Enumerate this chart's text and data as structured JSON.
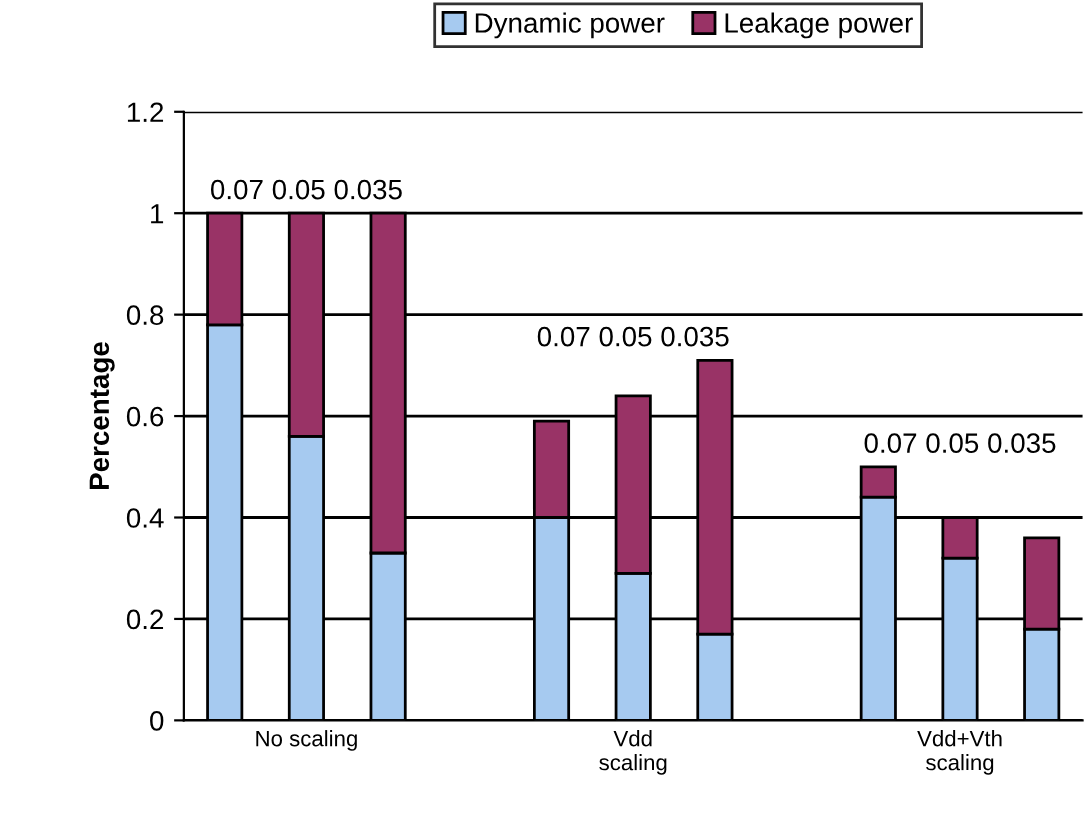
{
  "chart_data": {
    "type": "bar",
    "stacked": true,
    "ylabel": "Percentage",
    "categories": [
      null,
      "No scaling",
      null,
      null,
      null,
      "Vdd\nscaling",
      null,
      null,
      null,
      "Vdd+Vth\nscaling",
      null
    ],
    "series": [
      {
        "name": "Dynamic power",
        "color": "#a6caf0",
        "values": [
          0.78,
          0.56,
          0.33,
          null,
          0.4,
          0.29,
          0.17,
          null,
          0.44,
          0.32,
          0.18
        ]
      },
      {
        "name": "Leakage power",
        "color": "#993366",
        "values": [
          0.22,
          0.44,
          0.67,
          null,
          0.19,
          0.35,
          0.54,
          null,
          0.06,
          0.08,
          0.18
        ]
      }
    ],
    "annotations": [
      "0.07 0.05 0.035",
      "0.07 0.05 0.035",
      "0.07 0.05 0.035"
    ],
    "ylim": [
      0,
      1.2
    ],
    "yticks": [
      0,
      0.2,
      0.4,
      0.6,
      0.8,
      1,
      1.2
    ],
    "grid": "y",
    "legend": "top"
  }
}
